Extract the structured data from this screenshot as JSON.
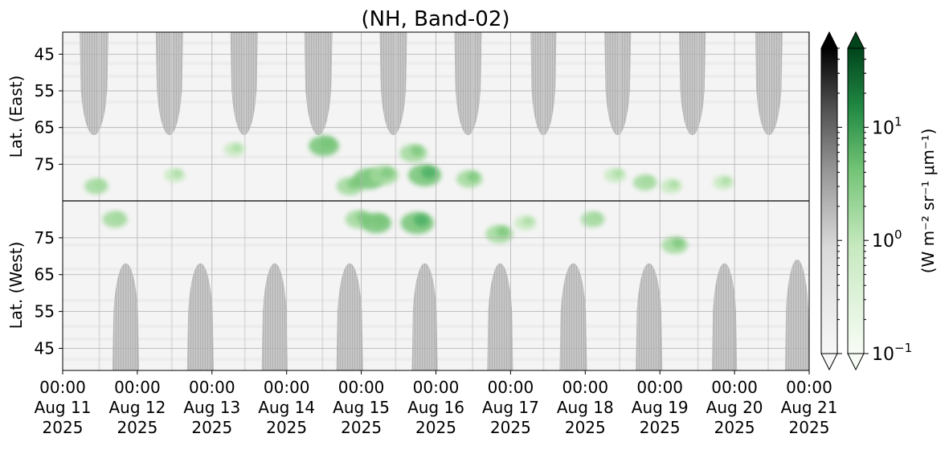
{
  "chart_data": {
    "type": "heatmap",
    "title": "(NH, Band-02)",
    "panels": [
      {
        "name": "east",
        "ylabel": "Lat. (East)",
        "yticks": [
          45,
          55,
          65,
          75
        ],
        "ylim": [
          85,
          39
        ],
        "direction": "latitude increases downward"
      },
      {
        "name": "west",
        "ylabel": "Lat. (West)",
        "yticks": [
          75,
          65,
          55,
          45
        ],
        "ylim": [
          85,
          39
        ],
        "direction": "latitude increases upward"
      }
    ],
    "xticks": [
      {
        "time": "00:00",
        "day": "Aug 11",
        "year": "2025"
      },
      {
        "time": "00:00",
        "day": "Aug 12",
        "year": "2025"
      },
      {
        "time": "00:00",
        "day": "Aug 13",
        "year": "2025"
      },
      {
        "time": "00:00",
        "day": "Aug 14",
        "year": "2025"
      },
      {
        "time": "00:00",
        "day": "Aug 15",
        "year": "2025"
      },
      {
        "time": "00:00",
        "day": "Aug 16",
        "year": "2025"
      },
      {
        "time": "00:00",
        "day": "Aug 17",
        "year": "2025"
      },
      {
        "time": "00:00",
        "day": "Aug 18",
        "year": "2025"
      },
      {
        "time": "00:00",
        "day": "Aug 19",
        "year": "2025"
      },
      {
        "time": "00:00",
        "day": "Aug 20",
        "year": "2025"
      },
      {
        "time": "00:00",
        "day": "Aug 21",
        "year": "2025"
      }
    ],
    "xlim": [
      "2025-08-11 00:00",
      "2025-08-21 00:00"
    ],
    "grid": true,
    "daylight_masks": {
      "east": [
        {
          "start_day": 11.23,
          "end_day": 11.61,
          "min_lat": 67
        },
        {
          "start_day": 12.25,
          "end_day": 12.61,
          "min_lat": 67
        },
        {
          "start_day": 13.25,
          "end_day": 13.61,
          "min_lat": 67
        },
        {
          "start_day": 14.24,
          "end_day": 14.61,
          "min_lat": 67
        },
        {
          "start_day": 15.25,
          "end_day": 15.61,
          "min_lat": 67
        },
        {
          "start_day": 16.25,
          "end_day": 16.61,
          "min_lat": 67
        },
        {
          "start_day": 17.27,
          "end_day": 17.61,
          "min_lat": 67
        },
        {
          "start_day": 18.26,
          "end_day": 18.61,
          "min_lat": 67
        },
        {
          "start_day": 19.26,
          "end_day": 19.61,
          "min_lat": 67
        },
        {
          "start_day": 20.28,
          "end_day": 20.64,
          "min_lat": 67
        },
        {
          "start_day": 20.99,
          "end_day": 21.0,
          "min_lat": 67
        }
      ],
      "west": [
        {
          "start_day": 11.67,
          "end_day": 12.02,
          "min_lat": 68
        },
        {
          "start_day": 12.67,
          "end_day": 13.02,
          "min_lat": 68
        },
        {
          "start_day": 13.67,
          "end_day": 14.01,
          "min_lat": 68
        },
        {
          "start_day": 14.67,
          "end_day": 15.02,
          "min_lat": 68
        },
        {
          "start_day": 15.68,
          "end_day": 16.02,
          "min_lat": 68
        },
        {
          "start_day": 16.69,
          "end_day": 17.03,
          "min_lat": 68
        },
        {
          "start_day": 17.66,
          "end_day": 18.02,
          "min_lat": 68
        },
        {
          "start_day": 18.68,
          "end_day": 19.03,
          "min_lat": 68
        },
        {
          "start_day": 19.7,
          "end_day": 20.03,
          "min_lat": 68
        },
        {
          "start_day": 20.68,
          "end_day": 21.0,
          "min_lat": 69
        }
      ]
    },
    "emission_patches": [
      {
        "panel": "east",
        "day": 11.45,
        "lat": 81,
        "value": 0.8
      },
      {
        "panel": "east",
        "day": 12.5,
        "lat": 78,
        "value": 0.5
      },
      {
        "panel": "east",
        "day": 13.3,
        "lat": 71,
        "value": 0.5
      },
      {
        "panel": "east",
        "day": 14.5,
        "lat": 70,
        "value": 2.5
      },
      {
        "panel": "east",
        "day": 14.85,
        "lat": 81,
        "value": 1.5
      },
      {
        "panel": "east",
        "day": 15.1,
        "lat": 79,
        "value": 3
      },
      {
        "panel": "east",
        "day": 15.3,
        "lat": 78,
        "value": 2
      },
      {
        "panel": "east",
        "day": 15.7,
        "lat": 72,
        "value": 1.5
      },
      {
        "panel": "east",
        "day": 15.85,
        "lat": 78,
        "value": 4
      },
      {
        "panel": "east",
        "day": 16.45,
        "lat": 79,
        "value": 1.2
      },
      {
        "panel": "east",
        "day": 18.4,
        "lat": 78,
        "value": 0.6
      },
      {
        "panel": "east",
        "day": 18.8,
        "lat": 80,
        "value": 0.8
      },
      {
        "panel": "east",
        "day": 19.15,
        "lat": 81,
        "value": 0.6
      },
      {
        "panel": "east",
        "day": 19.85,
        "lat": 80,
        "value": 0.5
      },
      {
        "panel": "west",
        "day": 11.7,
        "lat": 80,
        "value": 1.0
      },
      {
        "panel": "west",
        "day": 14.97,
        "lat": 80,
        "value": 1.5
      },
      {
        "panel": "west",
        "day": 15.2,
        "lat": 79,
        "value": 2.5
      },
      {
        "panel": "west",
        "day": 15.75,
        "lat": 79,
        "value": 4
      },
      {
        "panel": "west",
        "day": 16.85,
        "lat": 76,
        "value": 1.5
      },
      {
        "panel": "west",
        "day": 17.2,
        "lat": 79,
        "value": 0.6
      },
      {
        "panel": "west",
        "day": 18.1,
        "lat": 80,
        "value": 0.8
      },
      {
        "panel": "west",
        "day": 19.2,
        "lat": 73,
        "value": 1.2
      }
    ],
    "colorbar": {
      "label": "(W m⁻² sr⁻¹ μm⁻¹)",
      "scale": "log",
      "range": [
        0.1,
        50
      ],
      "ticks": [
        {
          "value": 0.1,
          "base": "10",
          "exp": "−1"
        },
        {
          "value": 1,
          "base": "10",
          "exp": "0"
        },
        {
          "value": 10,
          "base": "10",
          "exp": "1"
        }
      ],
      "gray_cmap": {
        "name": "Greys",
        "low": "#f7f7f7",
        "high": "#000000"
      },
      "green_cmap": {
        "name": "Greens",
        "low": "#f7fcf5",
        "high": "#00441b"
      },
      "extend": "both"
    }
  }
}
